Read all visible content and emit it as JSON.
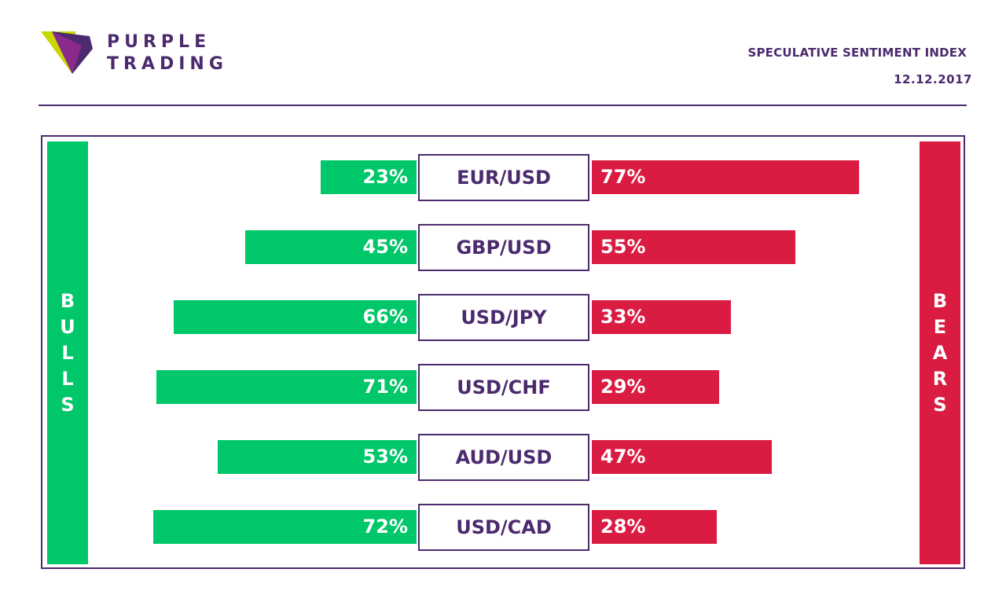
{
  "brand": {
    "line1": "PURPLE",
    "line2": "TRADING",
    "logo_icon": "purple-trading-logo-icon",
    "colors": {
      "purple": "#4b2a6e",
      "lime": "#c6d800",
      "magenta": "#8a2a8c"
    }
  },
  "header": {
    "title": "SPECULATIVE SENTIMENT INDEX",
    "date": "12.12.2017"
  },
  "labels": {
    "bulls": "BULLS",
    "bears": "BEARS"
  },
  "colors": {
    "bulls": "#00c76a",
    "bears": "#da1b42",
    "text": "#4b2a6e"
  },
  "chart_data": {
    "type": "bar",
    "orientation": "horizontal-diverging",
    "categories": [
      "EUR/USD",
      "GBP/USD",
      "USD/JPY",
      "USD/CHF",
      "AUD/USD",
      "USD/CAD"
    ],
    "series": [
      {
        "name": "BULLS",
        "values": [
          23,
          45,
          66,
          71,
          53,
          72
        ]
      },
      {
        "name": "BEARS",
        "values": [
          77,
          55,
          33,
          29,
          47,
          28
        ]
      }
    ],
    "unit": "%",
    "bull_labels": [
      "23%",
      "45%",
      "66%",
      "71%",
      "53%",
      "72%"
    ],
    "bear_labels": [
      "77%",
      "55%",
      "33%",
      "29%",
      "47%",
      "28%"
    ]
  }
}
